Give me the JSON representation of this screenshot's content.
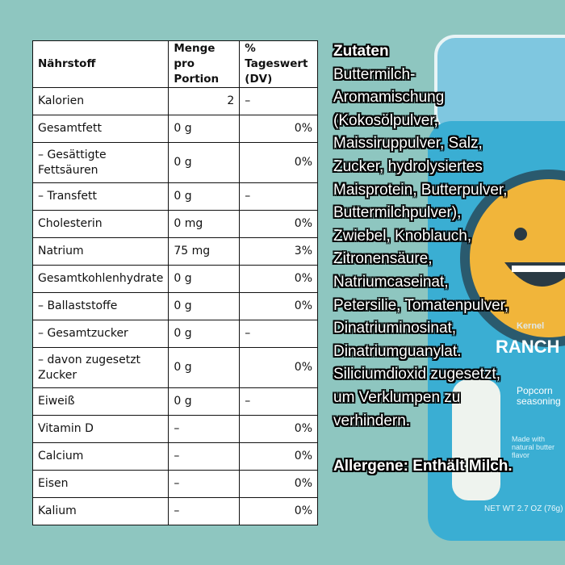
{
  "table": {
    "headers": [
      "Nährstoff",
      "Menge pro Portion",
      "% Tageswert (DV)"
    ],
    "rows": [
      {
        "name": "Kalorien",
        "amount": "2",
        "dv": "–"
      },
      {
        "name": "Gesamtfett",
        "amount": "0 g",
        "dv": "0%"
      },
      {
        "name": "– Gesättigte Fettsäuren",
        "amount": "0 g",
        "dv": "0%"
      },
      {
        "name": "– Transfett",
        "amount": "0 g",
        "dv": "–"
      },
      {
        "name": "Cholesterin",
        "amount": "0 mg",
        "dv": "0%"
      },
      {
        "name": "Natrium",
        "amount": "75 mg",
        "dv": "3%"
      },
      {
        "name": "Gesamtkohlenhydrate",
        "amount": "0 g",
        "dv": "0%"
      },
      {
        "name": "– Ballaststoffe",
        "amount": "0 g",
        "dv": "0%"
      },
      {
        "name": "– Gesamtzucker",
        "amount": "0 g",
        "dv": "–"
      },
      {
        "name": "– davon zugesetzt Zucker",
        "amount": "0 g",
        "dv": "0%"
      },
      {
        "name": "Eiweiß",
        "amount": "0 g",
        "dv": "–"
      },
      {
        "name": "Vitamin D",
        "amount": "–",
        "dv": "0%"
      },
      {
        "name": "Calcium",
        "amount": "–",
        "dv": "0%"
      },
      {
        "name": "Eisen",
        "amount": "–",
        "dv": "0%"
      },
      {
        "name": "Kalium",
        "amount": "–",
        "dv": "0%"
      }
    ]
  },
  "ingredients": {
    "title": "Zutaten",
    "text": "Buttermilch-\nAromamischung\n(Kokosölpulver,\nMaissiruppulver, Salz,\nZucker, hydrolysiertes\nMaisprotein, Butterpulver,\nButtermilchpulver),\nZwiebel, Knoblauch,\nZitronensäure,\nNatriumcaseinat,\nPetersilie, Tomatenpulver,\nDinatriuminosinat,\nDinatriumguanylat.\n Siliciumdioxid zugesetzt,\num Verklumpen zu\nverhindern.",
    "allergens": "Allergene: Enthält Milch."
  },
  "product_image": {
    "label_lettering": [
      "Kernel",
      "RANCH",
      "Popcorn seasoning",
      "Made with natural butter flavor",
      "NET WT 2.7 OZ (76g)"
    ]
  },
  "colors": {
    "background": "#8ec6c0",
    "can": "#3aaed3",
    "lid": "#7fc7e0"
  }
}
